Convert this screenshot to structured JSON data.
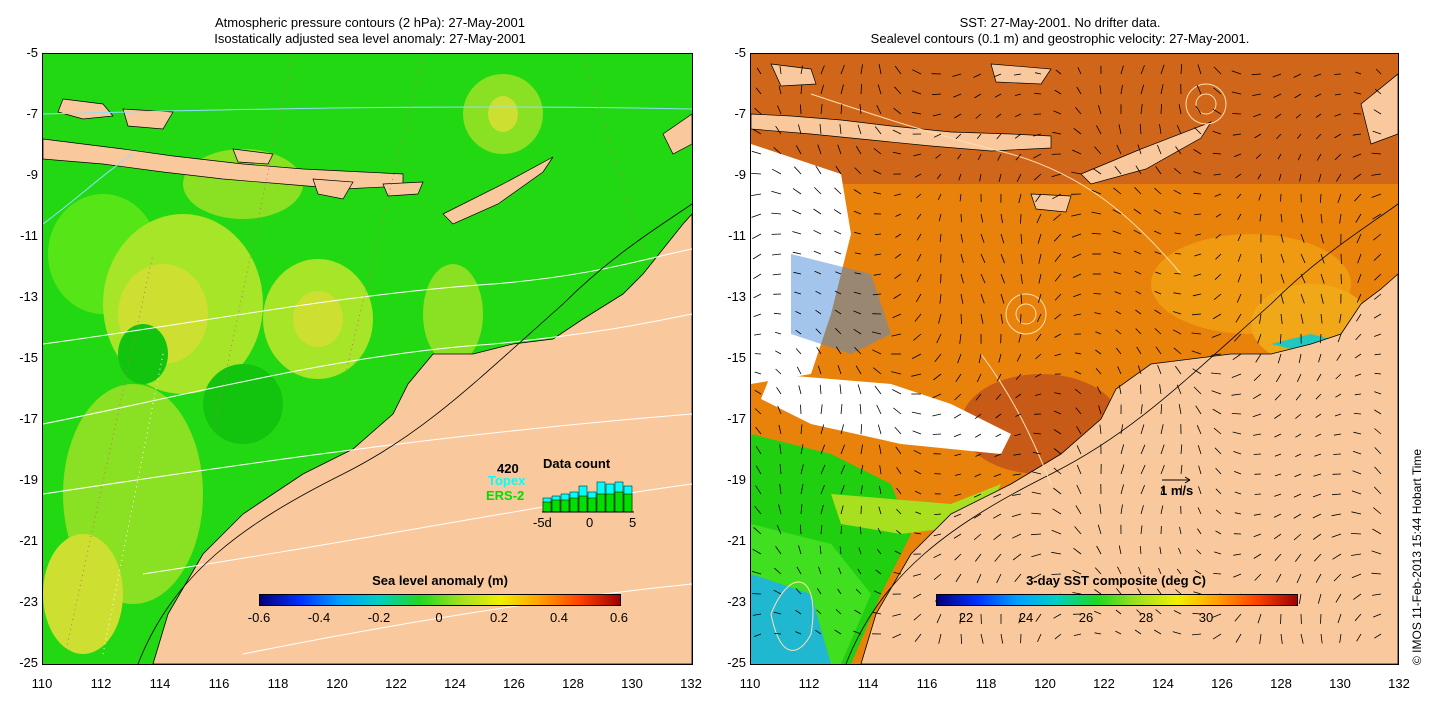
{
  "left_panel": {
    "title_line1": "Atmospheric pressure contours (2 hPa): 27-May-2001",
    "title_line2": "Isostatically adjusted sea level anomaly: 27-May-2001",
    "colorbar": {
      "title": "Sea level anomaly (m)",
      "ticks": [
        "-0.6",
        "-0.4",
        "-0.2",
        "0",
        "0.2",
        "0.4",
        "0.6"
      ]
    },
    "data_count": {
      "title": "Data count",
      "total": "420",
      "topex_label": "Topex",
      "ers_label": "ERS-2",
      "x_ticks": [
        "-5d",
        "0",
        "5"
      ],
      "topex_color": "#00ffff",
      "ers_color": "#00e000"
    }
  },
  "right_panel": {
    "title_line1": "SST: 27-May-2001. No drifter data.",
    "title_line2": "Sealevel contours (0.1 m) and geostrophic velocity: 27-May-2001.",
    "colorbar": {
      "title": "3-day SST composite (deg C)",
      "ticks": [
        "22",
        "24",
        "26",
        "28",
        "30"
      ]
    },
    "velocity_scale_label": "1 m/s"
  },
  "axes": {
    "y_ticks": [
      "-5",
      "-7",
      "-9",
      "-11",
      "-13",
      "-15",
      "-17",
      "-19",
      "-21",
      "-23",
      "-25"
    ],
    "x_ticks": [
      "110",
      "112",
      "114",
      "116",
      "118",
      "120",
      "122",
      "124",
      "126",
      "128",
      "130",
      "132"
    ]
  },
  "credit": "© IMOS 11-Feb-2013 15:44 Hobart Time",
  "colors": {
    "land": "#f9c99d",
    "sla_base": "#22d812",
    "sst_base": "#e8820a"
  }
}
